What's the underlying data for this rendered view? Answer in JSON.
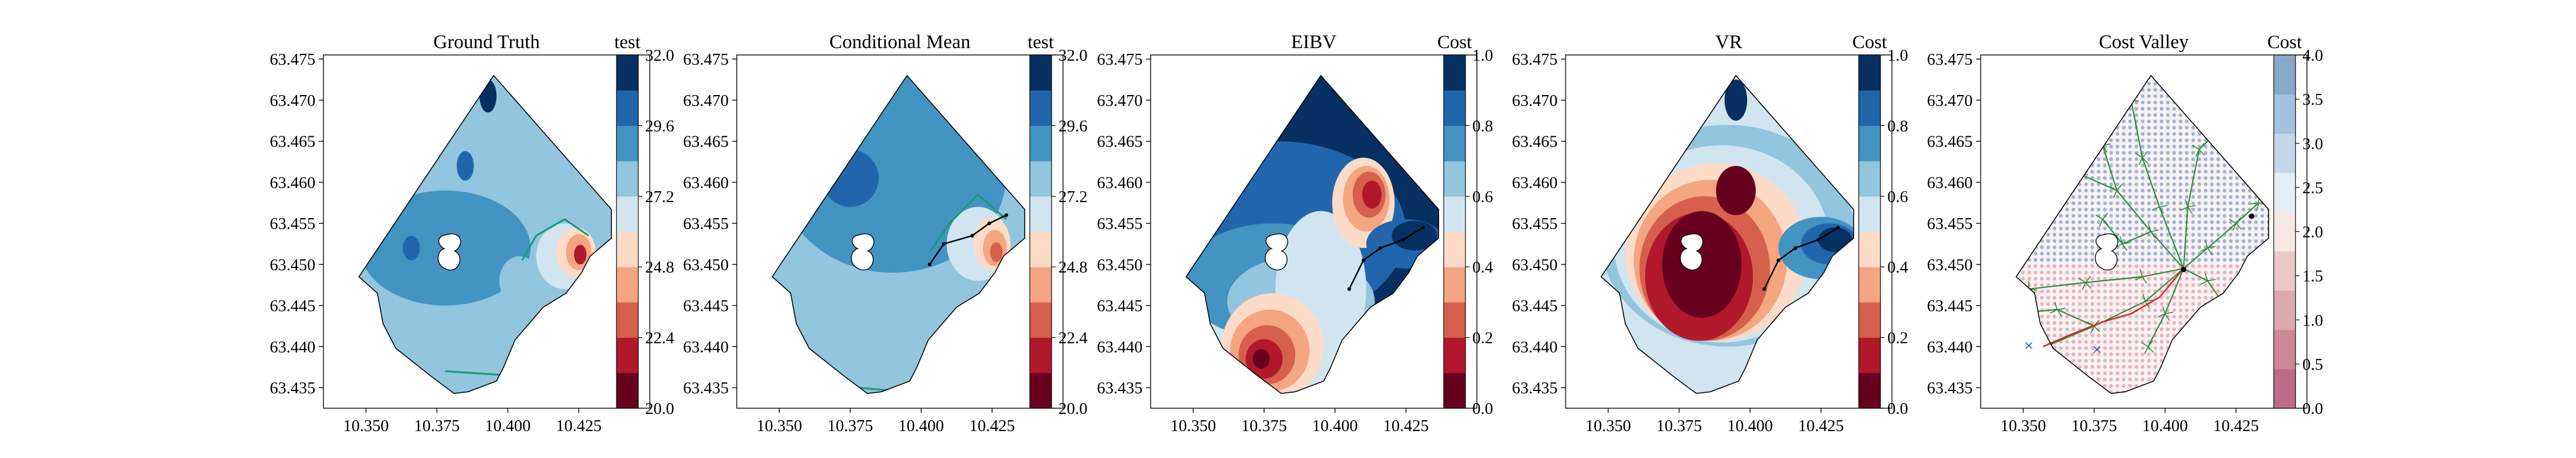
{
  "figure": {
    "background": "#ffffff"
  },
  "chart_data": [
    {
      "type": "heatmap",
      "title": "Ground Truth",
      "xlabel": "",
      "ylabel": "",
      "xlim": [
        10.335,
        10.45
      ],
      "ylim": [
        63.4325,
        63.4755
      ],
      "xticks": [
        "10.350",
        "10.375",
        "10.400",
        "10.425"
      ],
      "yticks": [
        "63.435",
        "63.440",
        "63.445",
        "63.450",
        "63.455",
        "63.460",
        "63.465",
        "63.470",
        "63.475"
      ],
      "colorbar": {
        "label": "test",
        "range": [
          20.0,
          32.0
        ],
        "ticks": [
          "20.0",
          "22.4",
          "24.8",
          "27.2",
          "29.6",
          "32.0"
        ],
        "colors": [
          "#67001f",
          "#b2182b",
          "#d6604d",
          "#f4a582",
          "#fddbc7",
          "#d1e5f0",
          "#92c5de",
          "#4393c3",
          "#2166ac",
          "#053061"
        ]
      },
      "zones": [
        {
          "level": 7,
          "x": 10.378,
          "y": 63.452,
          "rx": 0.03,
          "ry": 0.007
        },
        {
          "level": 6,
          "x": 10.375,
          "y": 63.441,
          "rx": 0.01,
          "ry": 0.004
        },
        {
          "level": 6,
          "x": 10.404,
          "y": 63.448,
          "rx": 0.007,
          "ry": 0.003
        },
        {
          "level": 5,
          "x": 10.42,
          "y": 63.451,
          "rx": 0.01,
          "ry": 0.004
        },
        {
          "level": 4,
          "x": 10.424,
          "y": 63.4515,
          "rx": 0.007,
          "ry": 0.003
        },
        {
          "level": 3,
          "x": 10.425,
          "y": 63.4515,
          "rx": 0.0045,
          "ry": 0.0022
        },
        {
          "level": 1,
          "x": 10.4255,
          "y": 63.4512,
          "rx": 0.0022,
          "ry": 0.0012
        },
        {
          "level": 8,
          "x": 10.385,
          "y": 63.462,
          "rx": 0.003,
          "ry": 0.0018
        },
        {
          "level": 8,
          "x": 10.366,
          "y": 63.452,
          "rx": 0.003,
          "ry": 0.0015
        },
        {
          "level": 9,
          "x": 10.393,
          "y": 63.4705,
          "rx": 0.003,
          "ry": 0.002
        }
      ],
      "contours": [
        {
          "x": [
            10.405,
            10.41,
            10.42,
            10.4285
          ],
          "y": [
            63.4505,
            63.4535,
            63.4555,
            63.4535
          ]
        },
        {
          "x": [
            10.378,
            10.4
          ],
          "y": [
            63.437,
            63.4365
          ]
        }
      ],
      "path": null,
      "hole": {
        "x": 10.38,
        "y": 63.4515
      }
    },
    {
      "type": "heatmap",
      "title": "Conditional Mean",
      "xlabel": "",
      "ylabel": "",
      "xlim": [
        10.335,
        10.45
      ],
      "ylim": [
        63.4325,
        63.4755
      ],
      "xticks": [
        "10.350",
        "10.375",
        "10.400",
        "10.425"
      ],
      "yticks": [
        "63.435",
        "63.440",
        "63.445",
        "63.450",
        "63.455",
        "63.460",
        "63.465",
        "63.470",
        "63.475"
      ],
      "colorbar": {
        "label": "test",
        "range": [
          20.0,
          32.0
        ],
        "ticks": [
          "20.0",
          "22.4",
          "24.8",
          "27.2",
          "29.6",
          "32.0"
        ],
        "colors": [
          "#67001f",
          "#b2182b",
          "#d6604d",
          "#f4a582",
          "#fddbc7",
          "#d1e5f0",
          "#92c5de",
          "#4393c3",
          "#2166ac",
          "#053061"
        ]
      },
      "zones": [
        {
          "level": 7,
          "x": 10.39,
          "y": 63.461,
          "rx": 0.04,
          "ry": 0.012
        },
        {
          "level": 6,
          "x": 10.388,
          "y": 63.441,
          "rx": 0.028,
          "ry": 0.005
        },
        {
          "level": 6,
          "x": 10.425,
          "y": 63.4505,
          "rx": 0.012,
          "ry": 0.004
        },
        {
          "level": 5,
          "x": 10.42,
          "y": 63.4525,
          "rx": 0.011,
          "ry": 0.0045
        },
        {
          "level": 4,
          "x": 10.425,
          "y": 63.4525,
          "rx": 0.0065,
          "ry": 0.0032
        },
        {
          "level": 3,
          "x": 10.426,
          "y": 63.452,
          "rx": 0.0042,
          "ry": 0.0022
        },
        {
          "level": 2,
          "x": 10.4265,
          "y": 63.4515,
          "rx": 0.0022,
          "ry": 0.0012
        },
        {
          "level": 8,
          "x": 10.375,
          "y": 63.4605,
          "rx": 0.01,
          "ry": 0.0035
        }
      ],
      "contours": [
        {
          "x": [
            10.403,
            10.41,
            10.42,
            10.43
          ],
          "y": [
            63.4515,
            63.455,
            63.4585,
            63.4555
          ]
        },
        {
          "x": [
            10.36,
            10.395
          ],
          "y": [
            63.4355,
            63.4345
          ]
        }
      ],
      "path": {
        "x": [
          10.403,
          10.408,
          10.418,
          10.424,
          10.43
        ],
        "y": [
          63.45,
          63.4525,
          63.4535,
          63.455,
          63.456
        ]
      },
      "hole": {
        "x": 10.38,
        "y": 63.4515
      }
    },
    {
      "type": "heatmap",
      "title": "EIBV",
      "xlabel": "",
      "ylabel": "",
      "xlim": [
        10.335,
        10.45
      ],
      "ylim": [
        63.4325,
        63.4755
      ],
      "xticks": [
        "10.350",
        "10.375",
        "10.400",
        "10.425"
      ],
      "yticks": [
        "63.435",
        "63.440",
        "63.445",
        "63.450",
        "63.455",
        "63.460",
        "63.465",
        "63.470",
        "63.475"
      ],
      "colorbar": {
        "label": "Cost",
        "range": [
          0.0,
          1.0
        ],
        "ticks": [
          "0.0",
          "0.2",
          "0.4",
          "0.6",
          "0.8",
          "1.0"
        ],
        "colors": [
          "#67001f",
          "#b2182b",
          "#d6604d",
          "#f4a582",
          "#fddbc7",
          "#d1e5f0",
          "#92c5de",
          "#4393c3",
          "#2166ac",
          "#053061"
        ]
      },
      "zones": [
        {
          "level": 9,
          "x": 10.385,
          "y": 63.462,
          "rx": 0.06,
          "ry": 0.02
        },
        {
          "level": 8,
          "x": 10.38,
          "y": 63.454,
          "rx": 0.045,
          "ry": 0.011
        },
        {
          "level": 7,
          "x": 10.378,
          "y": 63.448,
          "rx": 0.032,
          "ry": 0.007
        },
        {
          "level": 6,
          "x": 10.388,
          "y": 63.4455,
          "rx": 0.026,
          "ry": 0.0055
        },
        {
          "level": 5,
          "x": 10.395,
          "y": 63.447,
          "rx": 0.016,
          "ry": 0.0095
        },
        {
          "level": 4,
          "x": 10.41,
          "y": 63.4575,
          "rx": 0.011,
          "ry": 0.0055
        },
        {
          "level": 3,
          "x": 10.411,
          "y": 63.458,
          "rx": 0.0082,
          "ry": 0.004
        },
        {
          "level": 2,
          "x": 10.412,
          "y": 63.4585,
          "rx": 0.0058,
          "ry": 0.0028
        },
        {
          "level": 1,
          "x": 10.413,
          "y": 63.4585,
          "rx": 0.0034,
          "ry": 0.0017
        },
        {
          "level": 4,
          "x": 10.378,
          "y": 63.44,
          "rx": 0.018,
          "ry": 0.0065
        },
        {
          "level": 3,
          "x": 10.377,
          "y": 63.4395,
          "rx": 0.014,
          "ry": 0.005
        },
        {
          "level": 2,
          "x": 10.376,
          "y": 63.439,
          "rx": 0.01,
          "ry": 0.0036
        },
        {
          "level": 1,
          "x": 10.375,
          "y": 63.4385,
          "rx": 0.0065,
          "ry": 0.0024
        },
        {
          "level": 0,
          "x": 10.374,
          "y": 63.4385,
          "rx": 0.003,
          "ry": 0.0012
        },
        {
          "level": 8,
          "x": 10.425,
          "y": 63.4525,
          "rx": 0.014,
          "ry": 0.003
        },
        {
          "level": 9,
          "x": 10.428,
          "y": 63.4535,
          "rx": 0.008,
          "ry": 0.0018
        }
      ],
      "contours": [],
      "path": {
        "x": [
          10.405,
          10.41,
          10.416,
          10.424,
          10.431
        ],
        "y": [
          63.447,
          63.4505,
          63.452,
          63.453,
          63.4545
        ]
      },
      "hole": {
        "x": 10.38,
        "y": 63.4515
      }
    },
    {
      "type": "heatmap",
      "title": "VR",
      "xlabel": "",
      "ylabel": "",
      "xlim": [
        10.335,
        10.45
      ],
      "ylim": [
        63.4325,
        63.4755
      ],
      "xticks": [
        "10.350",
        "10.375",
        "10.400",
        "10.425"
      ],
      "yticks": [
        "63.435",
        "63.440",
        "63.445",
        "63.450",
        "63.455",
        "63.460",
        "63.465",
        "63.470",
        "63.475"
      ],
      "colorbar": {
        "label": "Cost",
        "range": [
          0.0,
          1.0
        ],
        "ticks": [
          "0.0",
          "0.2",
          "0.4",
          "0.6",
          "0.8",
          "1.0"
        ],
        "colors": [
          "#67001f",
          "#b2182b",
          "#d6604d",
          "#f4a582",
          "#fddbc7",
          "#d1e5f0",
          "#92c5de",
          "#4393c3",
          "#2166ac",
          "#053061"
        ]
      },
      "zones": [
        {
          "level": 6,
          "x": 10.392,
          "y": 63.4535,
          "rx": 0.045,
          "ry": 0.0135
        },
        {
          "level": 5,
          "x": 10.39,
          "y": 63.4525,
          "rx": 0.038,
          "ry": 0.012
        },
        {
          "level": 4,
          "x": 10.388,
          "y": 63.4515,
          "rx": 0.032,
          "ry": 0.0108
        },
        {
          "level": 3,
          "x": 10.386,
          "y": 63.4505,
          "rx": 0.027,
          "ry": 0.0098
        },
        {
          "level": 2,
          "x": 10.384,
          "y": 63.4495,
          "rx": 0.023,
          "ry": 0.0088
        },
        {
          "level": 1,
          "x": 10.382,
          "y": 63.4485,
          "rx": 0.019,
          "ry": 0.0078
        },
        {
          "level": 0,
          "x": 10.383,
          "y": 63.45,
          "rx": 0.014,
          "ry": 0.0065
        },
        {
          "level": 0,
          "x": 10.395,
          "y": 63.459,
          "rx": 0.007,
          "ry": 0.003
        },
        {
          "level": 7,
          "x": 10.425,
          "y": 63.452,
          "rx": 0.015,
          "ry": 0.0038
        },
        {
          "level": 8,
          "x": 10.428,
          "y": 63.4525,
          "rx": 0.01,
          "ry": 0.0025
        },
        {
          "level": 9,
          "x": 10.43,
          "y": 63.453,
          "rx": 0.006,
          "ry": 0.0015
        },
        {
          "level": 9,
          "x": 10.395,
          "y": 63.47,
          "rx": 0.004,
          "ry": 0.0025
        }
      ],
      "contours": [],
      "path": {
        "x": [
          10.405,
          10.41,
          10.416,
          10.424,
          10.431
        ],
        "y": [
          63.447,
          63.4505,
          63.452,
          63.453,
          63.4545
        ]
      },
      "hole": {
        "x": 10.38,
        "y": 63.4515
      }
    },
    {
      "type": "heatmap",
      "title": "Cost Valley",
      "xlabel": "",
      "ylabel": "",
      "xlim": [
        10.335,
        10.45
      ],
      "ylim": [
        63.4325,
        63.4755
      ],
      "xticks": [
        "10.350",
        "10.375",
        "10.400",
        "10.425"
      ],
      "yticks": [
        "63.435",
        "63.440",
        "63.445",
        "63.450",
        "63.455",
        "63.460",
        "63.465",
        "63.470",
        "63.475"
      ],
      "colorbar": {
        "label": "Cost",
        "range": [
          0.0,
          4.0
        ],
        "ticks": [
          "0.0",
          "0.5",
          "1.0",
          "1.5",
          "2.0",
          "2.5",
          "3.0",
          "3.5",
          "4.0"
        ],
        "colors": [
          "#bd6b88",
          "#cc8898",
          "#dca8b0",
          "#ebc8c8",
          "#f6e8e4",
          "#e4eef5",
          "#c2d7e9",
          "#a4c1dd",
          "#8aa8c8"
        ]
      },
      "dots_split_y": 63.45,
      "dots_low_color": "#e07b8e",
      "dots_high_color": "#5b7fad",
      "tree_color": "#2e8b3a",
      "tree_root": {
        "x": 10.4065,
        "y": 63.4495
      },
      "tree_branches": [
        {
          "x": [
            10.4065,
            10.395,
            10.383,
            10.37
          ],
          "y": [
            63.4495,
            63.454,
            63.459,
            63.461
          ]
        },
        {
          "x": [
            10.4065,
            10.398,
            10.392,
            10.388
          ],
          "y": [
            63.4495,
            63.457,
            63.463,
            63.47
          ]
        },
        {
          "x": [
            10.4065,
            10.408,
            10.412,
            10.418
          ],
          "y": [
            63.4495,
            63.457,
            63.464,
            63.466
          ]
        },
        {
          "x": [
            10.4065,
            10.415,
            10.425,
            10.433
          ],
          "y": [
            63.4495,
            63.452,
            63.455,
            63.4575
          ]
        },
        {
          "x": [
            10.4065,
            10.415,
            10.422
          ],
          "y": [
            63.4495,
            63.448,
            63.4445
          ]
        },
        {
          "x": [
            10.4065,
            10.392,
            10.372,
            10.352
          ],
          "y": [
            63.4495,
            63.4485,
            63.4478,
            63.447
          ]
        },
        {
          "x": [
            10.4065,
            10.393,
            10.375,
            10.358
          ],
          "y": [
            63.4495,
            63.4455,
            63.4425,
            63.44
          ]
        },
        {
          "x": [
            10.375,
            10.362,
            10.345
          ],
          "y": [
            63.4425,
            63.4445,
            63.444
          ]
        },
        {
          "x": [
            10.383,
            10.378,
            10.372
          ],
          "y": [
            63.459,
            63.4645,
            63.467
          ]
        },
        {
          "x": [
            10.395,
            10.385,
            10.378
          ],
          "y": [
            63.454,
            63.4525,
            63.4555
          ]
        },
        {
          "x": [
            10.4065,
            10.4,
            10.394
          ],
          "y": [
            63.4495,
            63.444,
            63.44
          ]
        }
      ],
      "path": {
        "x": [
          10.4065,
          10.398,
          10.388,
          10.378,
          10.367,
          10.357
        ],
        "y": [
          63.4495,
          63.446,
          63.444,
          63.443,
          63.4415,
          63.44
        ]
      },
      "path_color": "#d62728",
      "markers": [
        {
          "label": "×",
          "x": 10.352,
          "y": 63.44,
          "color": "#1f3fbf"
        },
        {
          "label": "×",
          "x": 10.376,
          "y": 63.4395,
          "color": "#1f3fbf"
        },
        {
          "label": "●",
          "x": 10.4065,
          "y": 63.4495,
          "color": "#000000"
        },
        {
          "label": "●",
          "x": 10.4305,
          "y": 63.456,
          "color": "#000000"
        }
      ],
      "hole": {
        "x": 10.38,
        "y": 63.4515
      }
    }
  ]
}
